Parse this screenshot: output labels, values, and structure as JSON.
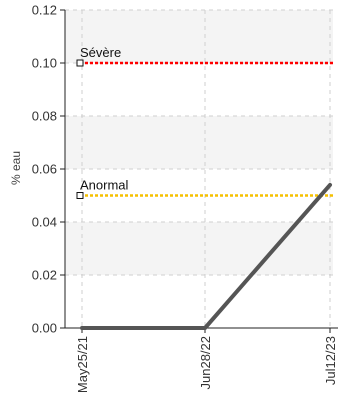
{
  "chart_data": {
    "type": "line",
    "title": "",
    "xlabel": "",
    "ylabel": "% eau",
    "categories": [
      "May25/21",
      "Jun28/22",
      "Jul12/23"
    ],
    "x": [
      "2021-05-25",
      "2022-06-28",
      "2023-07-12"
    ],
    "ylim": [
      0,
      0.12
    ],
    "y_ticks": [
      "0.00",
      "0.02",
      "0.04",
      "0.06",
      "0.08",
      "0.10",
      "0.12"
    ],
    "grid": true,
    "series": [
      {
        "values": [
          0,
          0,
          0.054
        ],
        "color": "#555555"
      }
    ],
    "thresholds": [
      {
        "label": "Sévère",
        "value": 0.1,
        "color": "#ff0000"
      },
      {
        "label": "Anormal",
        "value": 0.05,
        "color": "#f5c000"
      }
    ]
  }
}
